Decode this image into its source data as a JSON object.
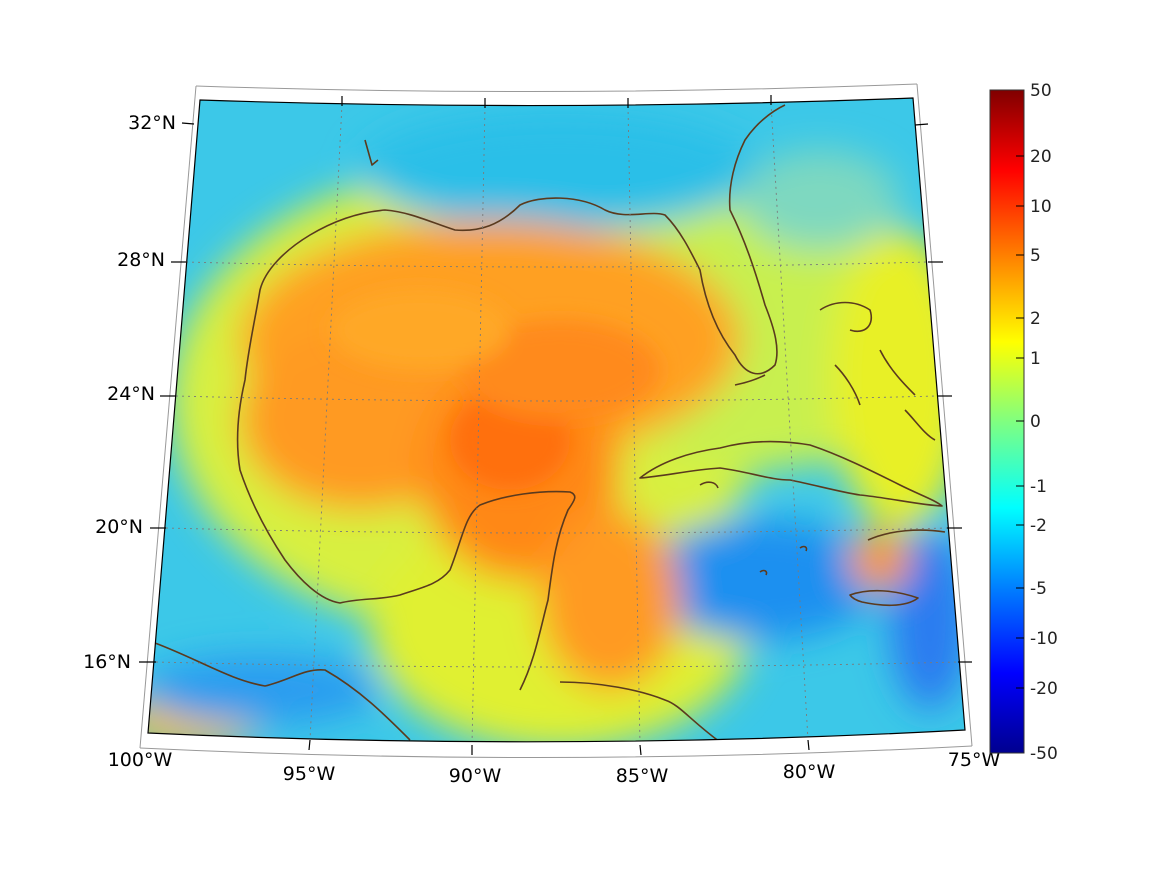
{
  "map": {
    "longitude_labels": [
      "100°W",
      "95°W",
      "90°W",
      "85°W",
      "80°W",
      "75°W"
    ],
    "latitude_labels": [
      "32°N",
      "28°N",
      "24°N",
      "20°N",
      "16°N"
    ]
  },
  "colorbar": {
    "tick_labels": [
      "50",
      "20",
      "10",
      "5",
      "2",
      "1",
      "0",
      "-1",
      "-2",
      "-5",
      "-10",
      "-20",
      "-50"
    ],
    "colormap": [
      "#00008f",
      "#0000ff",
      "#0080ff",
      "#00ffff",
      "#80ff80",
      "#ffff00",
      "#ff8000",
      "#ff0000",
      "#800000"
    ]
  },
  "colors": {
    "coastline": "#5a3a1e",
    "field_high": "#ff7a10",
    "field_mid": "#f4f020",
    "field_low": "#1aa8f0"
  }
}
